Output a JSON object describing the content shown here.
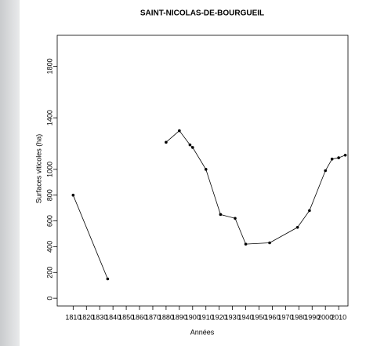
{
  "chart_data": {
    "type": "line",
    "title": "SAINT-NICOLAS-DE-BOURGUEIL",
    "xlabel": "Années",
    "ylabel": "Surfaces viticoles (ha)",
    "series": [
      {
        "color": "#000000",
        "x": [
          1810,
          1836,
          null,
          1880,
          1890,
          1898,
          1900,
          1910,
          1921,
          1932,
          1940,
          1958,
          1979,
          1988,
          2000,
          2005,
          2010,
          2015
        ],
        "values": [
          800,
          150,
          null,
          1210,
          1300,
          1190,
          1170,
          1000,
          650,
          620,
          420,
          430,
          550,
          680,
          990,
          1080,
          1090,
          1110
        ]
      }
    ],
    "xlim": [
      1798,
      2017
    ],
    "xticks": [
      1810,
      1820,
      1830,
      1840,
      1850,
      1860,
      1870,
      1880,
      1890,
      1900,
      1910,
      1920,
      1930,
      1940,
      1950,
      1960,
      1970,
      1980,
      1990,
      2000,
      2010
    ],
    "ylim": [
      -60,
      2040
    ],
    "yticks": [
      0,
      200,
      400,
      600,
      800,
      1000,
      1400,
      1800
    ]
  }
}
